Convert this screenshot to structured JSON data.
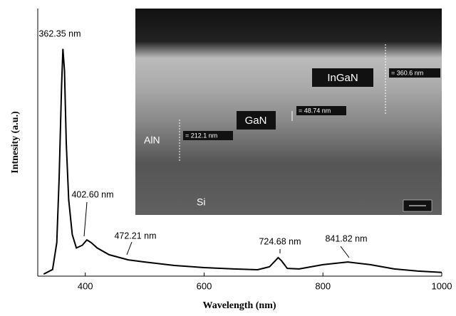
{
  "chart_data": {
    "type": "line",
    "x_label": "Wavelength (nm)",
    "y_label": "Intnesity (a.u.)",
    "x": [
      330,
      345,
      352,
      356,
      360,
      362.35,
      365,
      368,
      372,
      378,
      385,
      395,
      402.6,
      410,
      420,
      440,
      472.21,
      500,
      550,
      600,
      650,
      690,
      710,
      720,
      724.68,
      730,
      740,
      760,
      800,
      841.82,
      880,
      920,
      960,
      1000
    ],
    "series": [
      {
        "color": "#000000",
        "values": [
          1.3,
          3,
          13,
          37,
          71,
          85,
          77,
          50,
          29,
          16,
          11,
          12,
          14,
          13,
          11,
          8.5,
          6.6,
          5.8,
          4.5,
          3.7,
          3.2,
          2.9,
          4,
          6.3,
          7.4,
          6.3,
          3.4,
          3.2,
          4.8,
          5.8,
          4.8,
          3.2,
          2.4,
          1.9
        ]
      }
    ],
    "xlim": [
      320,
      1000
    ],
    "ylim": [
      0,
      100
    ],
    "xticks": [
      400,
      600,
      800,
      1000
    ],
    "annotations": [
      "362.35 nm",
      "402.60 nm",
      "472.21 nm",
      "724.68 nm",
      "841.82 nm"
    ],
    "inset": {
      "layers": [
        "InGaN",
        "GaN",
        "AlN",
        "Si"
      ],
      "measurements": [
        "= 360.6 nm",
        "= 48.74 nm",
        "= 212.1 nm"
      ]
    }
  }
}
